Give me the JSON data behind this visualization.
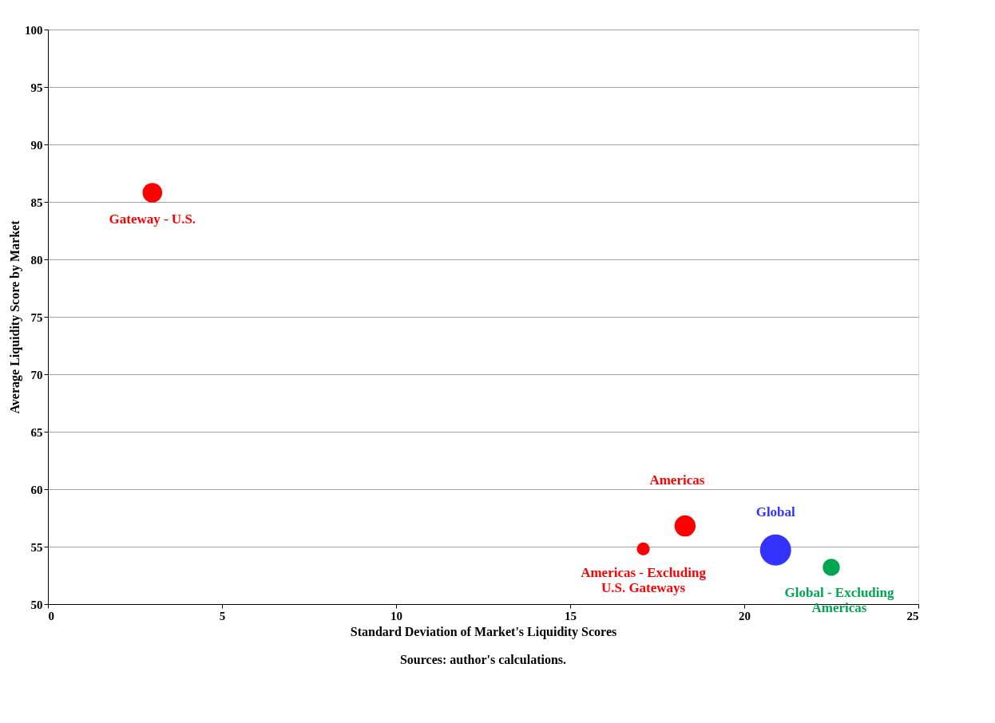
{
  "chart_data": {
    "type": "bubble",
    "xlabel": "Standard Deviation of Market's Liquidity Scores",
    "ylabel": "Average Liquidity Score by Market",
    "annotations": [
      "Sources: author's calculations."
    ],
    "xlim": [
      0,
      25
    ],
    "xticks": [
      0,
      5,
      10,
      15,
      20,
      25
    ],
    "ylim": [
      50,
      100
    ],
    "yticks": [
      50,
      55,
      60,
      65,
      70,
      75,
      80,
      85,
      90,
      95,
      100
    ],
    "grid": "y",
    "legend": false,
    "series": [
      {
        "name": "Gateway - U.S.",
        "color": "#ff0000",
        "x": [
          3.0
        ],
        "values": [
          85.8
        ],
        "sizes": [
          0.4
        ]
      },
      {
        "name": "Americas",
        "color": "#ff0000",
        "x": [
          18.3
        ],
        "values": [
          56.8
        ],
        "sizes": [
          0.46
        ]
      },
      {
        "name": "Americas - Excluding\nU.S. Gateways",
        "color": "#ff0000",
        "x": [
          17.1
        ],
        "values": [
          54.8
        ],
        "sizes": [
          0.17
        ]
      },
      {
        "name": "Global",
        "color": "#3333ff",
        "x": [
          20.9
        ],
        "values": [
          54.7
        ],
        "sizes": [
          1
        ]
      },
      {
        "name": "Global - Excluding\nAmericas",
        "color": "#00a651",
        "x": [
          22.5
        ],
        "values": [
          53.2
        ],
        "sizes": [
          0.3
        ]
      }
    ]
  }
}
